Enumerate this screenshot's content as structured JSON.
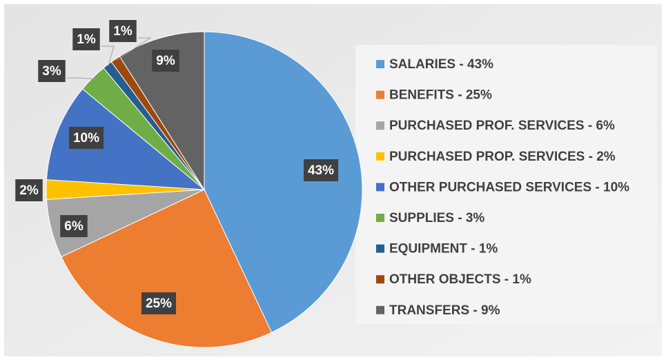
{
  "chart_data": {
    "type": "pie",
    "categories": [
      "SALARIES - 43%",
      "BENEFITS - 25%",
      "PURCHASED PROF. SERVICES - 6%",
      "PURCHASED PROP. SERVICES - 2%",
      "OTHER PURCHASED SERVICES - 10%",
      "SUPPLIES - 3%",
      "EQUIPMENT - 1%",
      "OTHER OBJECTS - 1%",
      "TRANSFERS - 9%"
    ],
    "values": [
      43,
      25,
      6,
      2,
      10,
      3,
      1,
      1,
      9
    ],
    "value_labels": [
      "43%",
      "25%",
      "6%",
      "2%",
      "10%",
      "3%",
      "1%",
      "1%",
      "9%"
    ],
    "colors": [
      "#5b9bd5",
      "#ed7d31",
      "#a5a5a5",
      "#ffc000",
      "#4472c4",
      "#70ad47",
      "#255e91",
      "#9e480e",
      "#636363"
    ],
    "legend": "right"
  }
}
